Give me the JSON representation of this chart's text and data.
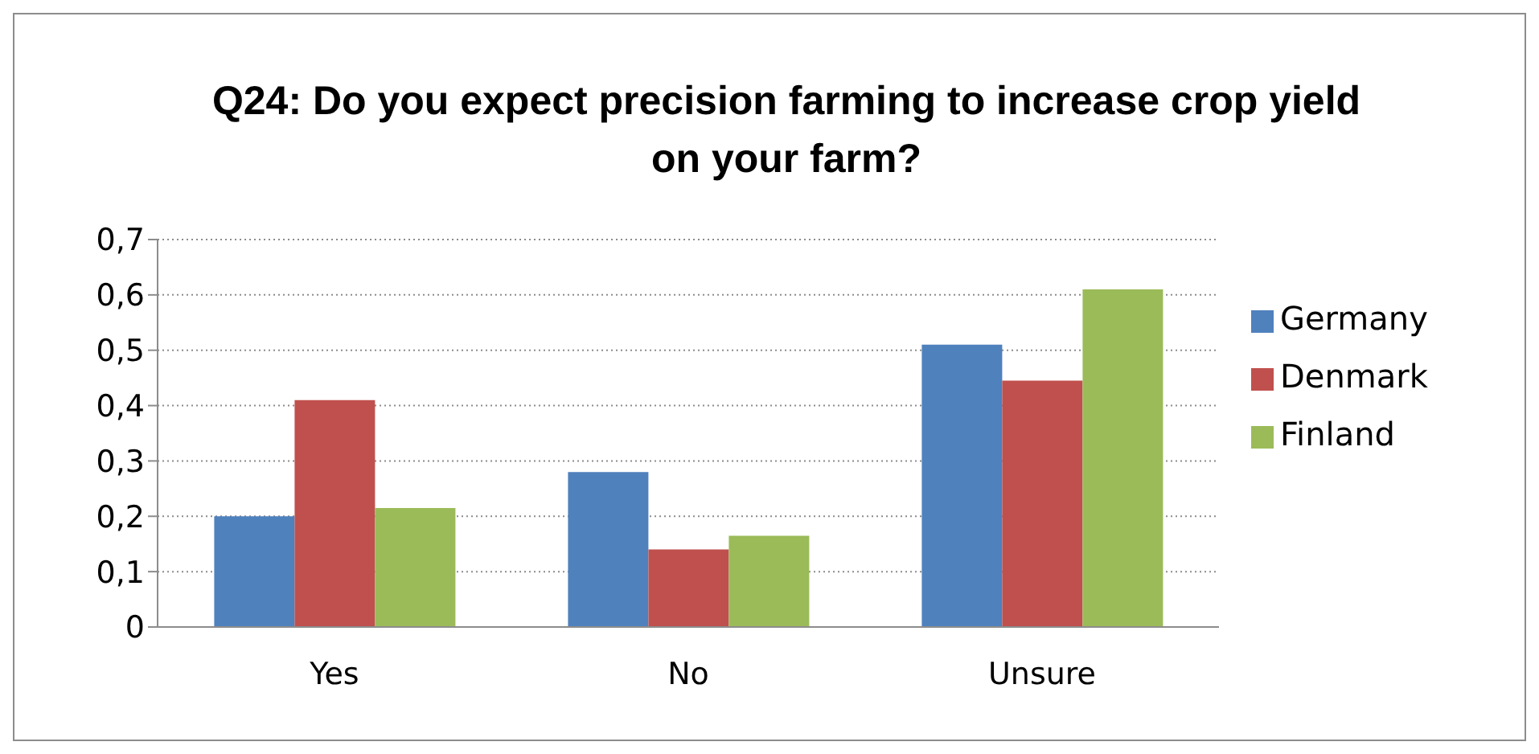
{
  "chart_data": {
    "type": "bar",
    "title": "Q24: Do you expect precision farming to increase crop yield on your farm?",
    "categories": [
      "Yes",
      "No",
      "Unsure"
    ],
    "series": [
      {
        "name": "Germany",
        "color": "#4f81bd",
        "values": [
          0.2,
          0.28,
          0.51
        ]
      },
      {
        "name": "Denmark",
        "color": "#c0504d",
        "values": [
          0.41,
          0.14,
          0.445
        ]
      },
      {
        "name": "Finland",
        "color": "#9bbb59",
        "values": [
          0.215,
          0.165,
          0.61
        ]
      }
    ],
    "ylim": [
      0,
      0.7
    ],
    "yticks": [
      0,
      {
        "value": 0.1,
        "label": "0,1"
      },
      {
        "value": 0.2,
        "label": "0,2"
      },
      {
        "value": 0.3,
        "label": "0,3"
      },
      {
        "value": 0.4,
        "label": "0,4"
      },
      {
        "value": 0.5,
        "label": "0,5"
      },
      {
        "value": 0.6,
        "label": "0,6"
      },
      {
        "value": 0.7,
        "label": "0,7"
      }
    ],
    "grid": "y",
    "legend": "right"
  }
}
